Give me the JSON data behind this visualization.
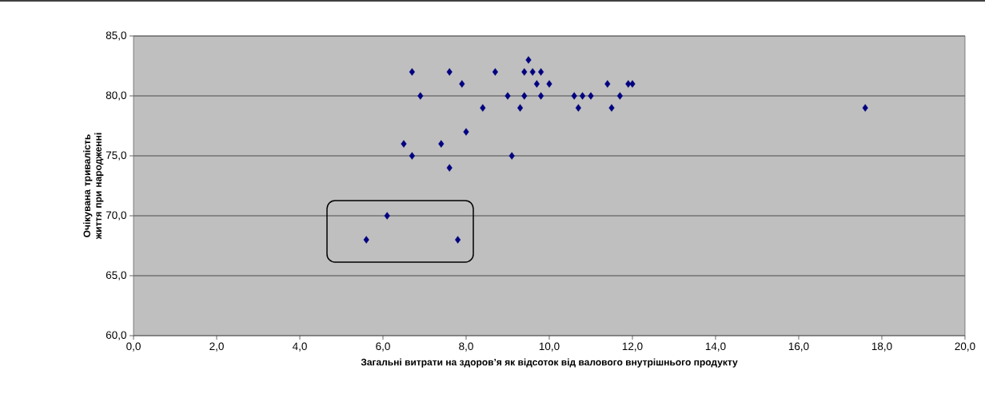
{
  "chart_data": {
    "type": "scatter",
    "xlabel": "Загальні витрати на здоров’я як відсоток від валового внутрішнього продукту",
    "ylabel": "Очікувана тривалість життя при народженні",
    "x": [
      5.6,
      6.1,
      7.8,
      6.5,
      6.7,
      6.7,
      6.9,
      7.4,
      7.6,
      7.6,
      7.9,
      8.0,
      8.4,
      8.7,
      9.0,
      9.1,
      9.3,
      9.4,
      9.4,
      9.5,
      9.6,
      9.7,
      9.8,
      9.8,
      10.0,
      10.6,
      10.7,
      10.8,
      11.0,
      11.4,
      11.5,
      11.7,
      11.9,
      12.0,
      17.6
    ],
    "values": [
      68,
      70,
      68,
      76,
      75,
      82,
      80,
      76,
      74,
      82,
      81,
      77,
      79,
      82,
      80,
      75,
      79,
      82,
      80,
      83,
      82,
      81,
      82,
      80,
      81,
      80,
      79,
      80,
      80,
      81,
      79,
      80,
      81,
      81,
      79
    ],
    "color": "#000080",
    "marker": "diamond",
    "grid": "y",
    "xlim": [
      0,
      20
    ],
    "ylim": [
      60,
      85
    ],
    "xticks": [
      {
        "value": 0,
        "label": "0,0"
      },
      {
        "value": 2,
        "label": "2,0"
      },
      {
        "value": 4,
        "label": "4,0"
      },
      {
        "value": 6,
        "label": "6,0"
      },
      {
        "value": 8,
        "label": "8,0"
      },
      {
        "value": 10,
        "label": "10,0"
      },
      {
        "value": 12,
        "label": "12,0"
      },
      {
        "value": 14,
        "label": "14,0"
      },
      {
        "value": 16,
        "label": "16,0"
      },
      {
        "value": 18,
        "label": "18,0"
      },
      {
        "value": 20,
        "label": "20,0"
      }
    ],
    "yticks": [
      {
        "value": 60,
        "label": "60,0"
      },
      {
        "value": 65,
        "label": "65,0"
      },
      {
        "value": 70,
        "label": "70,0"
      },
      {
        "value": 75,
        "label": "75,0"
      },
      {
        "value": 80,
        "label": "80,0"
      },
      {
        "value": 85,
        "label": "85,0"
      }
    ]
  }
}
